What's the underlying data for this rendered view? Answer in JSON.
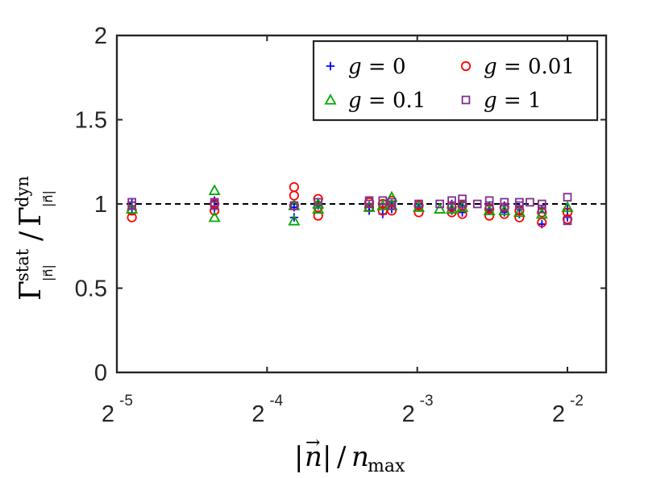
{
  "chart_data": {
    "type": "scatter",
    "x_scale": "log2",
    "xlim_exp": [
      -5,
      -1.7
    ],
    "ylim": [
      0,
      2
    ],
    "grid": false,
    "legend_position": "top-right",
    "reference_line": {
      "y": 1,
      "style": "dashed",
      "color": "#000000"
    },
    "x_ticks": [
      {
        "value_exp": -5,
        "base": "2",
        "exp": "-5"
      },
      {
        "value_exp": -4,
        "base": "2",
        "exp": "-4"
      },
      {
        "value_exp": -3,
        "base": "2",
        "exp": "-3"
      },
      {
        "value_exp": -2,
        "base": "2",
        "exp": "-2"
      }
    ],
    "y_ticks": [
      {
        "value": 0,
        "label": "0"
      },
      {
        "value": 0.5,
        "label": "0.5"
      },
      {
        "value": 1,
        "label": "1"
      },
      {
        "value": 1.5,
        "label": "1.5"
      },
      {
        "value": 2,
        "label": "2"
      }
    ],
    "xlabel": "|n⃗| / n_max",
    "ylabel": "Γ^stat_|n⃗| / Γ^dyn_|n⃗|",
    "series": [
      {
        "name": "g = 0",
        "marker": "plus",
        "color": "#0000ff",
        "points": [
          [
            -4.9,
            0.97
          ],
          [
            -4.9,
            1.01
          ],
          [
            -4.35,
            1.02
          ],
          [
            -4.35,
            0.97
          ],
          [
            -3.82,
            0.92
          ],
          [
            -3.82,
            0.98
          ],
          [
            -3.66,
            0.99
          ],
          [
            -3.66,
            1.0
          ],
          [
            -3.32,
            0.96
          ],
          [
            -3.32,
            0.99
          ],
          [
            -3.23,
            0.94
          ],
          [
            -3.23,
            0.98
          ],
          [
            -3.17,
            0.97
          ],
          [
            -3.17,
            1.0
          ],
          [
            -2.99,
            0.98
          ],
          [
            -2.99,
            1.0
          ],
          [
            -2.77,
            0.96
          ],
          [
            -2.77,
            1.0
          ],
          [
            -2.7,
            0.95
          ],
          [
            -2.7,
            0.99
          ],
          [
            -2.52,
            0.96
          ],
          [
            -2.52,
            0.99
          ],
          [
            -2.42,
            0.95
          ],
          [
            -2.42,
            0.99
          ],
          [
            -2.32,
            0.94
          ],
          [
            -2.32,
            0.98
          ],
          [
            -2.17,
            0.88
          ],
          [
            -2.17,
            0.97
          ],
          [
            -2.0,
            0.92
          ],
          [
            -2.0,
            0.97
          ]
        ]
      },
      {
        "name": "g = 0.01",
        "marker": "circle",
        "color": "#ff0000",
        "points": [
          [
            -4.9,
            0.92
          ],
          [
            -4.9,
            0.96
          ],
          [
            -4.35,
            1.0
          ],
          [
            -4.35,
            0.96
          ],
          [
            -3.82,
            1.1
          ],
          [
            -3.82,
            1.05
          ],
          [
            -3.82,
            0.99
          ],
          [
            -3.66,
            1.03
          ],
          [
            -3.66,
            0.93
          ],
          [
            -3.66,
            0.98
          ],
          [
            -3.32,
            0.98
          ],
          [
            -3.32,
            1.01
          ],
          [
            -3.23,
            0.96
          ],
          [
            -3.23,
            1.0
          ],
          [
            -3.17,
            0.96
          ],
          [
            -3.17,
            1.02
          ],
          [
            -2.99,
            0.95
          ],
          [
            -2.99,
            0.99
          ],
          [
            -2.77,
            0.95
          ],
          [
            -2.77,
            0.98
          ],
          [
            -2.7,
            0.94
          ],
          [
            -2.7,
            0.99
          ],
          [
            -2.52,
            0.93
          ],
          [
            -2.52,
            0.97
          ],
          [
            -2.42,
            0.94
          ],
          [
            -2.42,
            0.98
          ],
          [
            -2.32,
            0.92
          ],
          [
            -2.32,
            0.96
          ],
          [
            -2.17,
            0.89
          ],
          [
            -2.17,
            0.95
          ],
          [
            -2.0,
            0.91
          ],
          [
            -2.0,
            0.95
          ]
        ]
      },
      {
        "name": "g = 0.1",
        "marker": "triangle",
        "color": "#00aa00",
        "points": [
          [
            -4.9,
            0.97
          ],
          [
            -4.35,
            1.08
          ],
          [
            -4.35,
            0.92
          ],
          [
            -3.82,
            0.9
          ],
          [
            -3.82,
            0.99
          ],
          [
            -3.66,
            1.0
          ],
          [
            -3.66,
            0.97
          ],
          [
            -3.32,
            0.98
          ],
          [
            -3.23,
            0.99
          ],
          [
            -3.17,
            1.04
          ],
          [
            -3.17,
            0.99
          ],
          [
            -2.99,
            0.98
          ],
          [
            -2.85,
            0.97
          ],
          [
            -2.77,
            0.97
          ],
          [
            -2.7,
            0.98
          ],
          [
            -2.52,
            0.96
          ],
          [
            -2.42,
            0.96
          ],
          [
            -2.32,
            0.95
          ],
          [
            -2.17,
            0.94
          ],
          [
            -2.0,
            0.98
          ]
        ]
      },
      {
        "name": "g = 1",
        "marker": "square",
        "color": "#7e2f8e",
        "points": [
          [
            -4.9,
            1.01
          ],
          [
            -4.9,
            0.99
          ],
          [
            -4.35,
            0.99
          ],
          [
            -4.35,
            1.01
          ],
          [
            -3.82,
            0.99
          ],
          [
            -3.66,
            1.01
          ],
          [
            -3.32,
            1.0
          ],
          [
            -3.32,
            1.02
          ],
          [
            -3.23,
            1.02
          ],
          [
            -3.17,
            1.01
          ],
          [
            -3.17,
            0.99
          ],
          [
            -2.99,
            1.0
          ],
          [
            -2.85,
            1.0
          ],
          [
            -2.77,
            1.02
          ],
          [
            -2.77,
            0.99
          ],
          [
            -2.7,
            1.03
          ],
          [
            -2.7,
            1.0
          ],
          [
            -2.6,
            1.0
          ],
          [
            -2.52,
            1.02
          ],
          [
            -2.52,
            0.99
          ],
          [
            -2.42,
            1.01
          ],
          [
            -2.42,
            0.98
          ],
          [
            -2.32,
            1.01
          ],
          [
            -2.32,
            0.99
          ],
          [
            -2.25,
            1.01
          ],
          [
            -2.17,
            1.0
          ],
          [
            -2.17,
            0.97
          ],
          [
            -2.0,
            1.04
          ],
          [
            -2.0,
            0.9
          ]
        ]
      }
    ]
  }
}
